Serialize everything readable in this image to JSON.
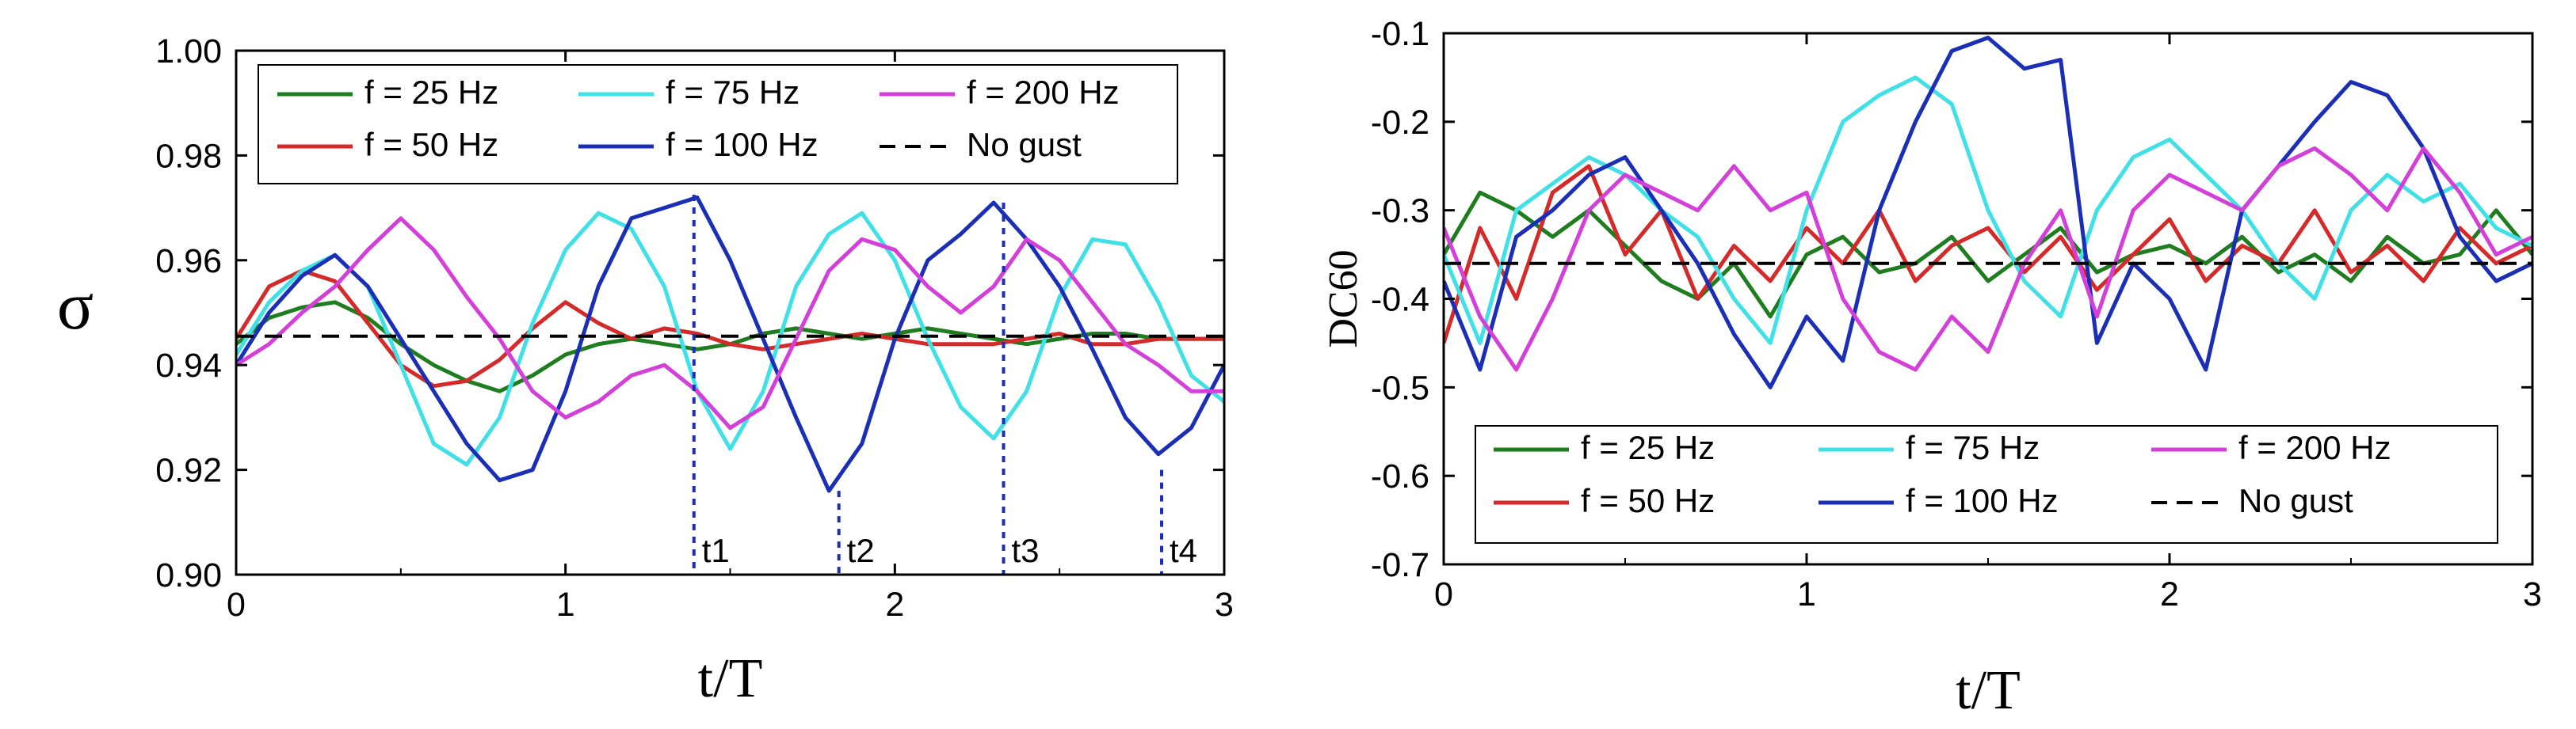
{
  "chart_data": [
    {
      "type": "line",
      "xlabel": "t/T",
      "ylabel": "σ",
      "xlim": [
        0,
        3
      ],
      "ylim": [
        0.9,
        1.0
      ],
      "xticks": [
        0,
        1,
        2,
        3
      ],
      "yticks": [
        0.9,
        0.92,
        0.94,
        0.96,
        0.98,
        1.0
      ],
      "xtick_labels": [
        "0",
        "1",
        "2",
        "3"
      ],
      "ytick_labels": [
        "0.90",
        "0.92",
        "0.94",
        "0.96",
        "0.98",
        "1.00"
      ],
      "legend_position": "top",
      "legend_layout": [
        [
          "f = 25 Hz",
          "f = 75 Hz",
          "f = 200 Hz"
        ],
        [
          "f = 50 Hz",
          "f = 100 Hz",
          "No gust"
        ]
      ],
      "markers": [
        {
          "label": "t1",
          "x": 1.39,
          "y": 0.9725
        },
        {
          "label": "t2",
          "x": 1.83,
          "y": 0.916
        },
        {
          "label": "t3",
          "x": 2.33,
          "y": 0.971
        },
        {
          "label": "t4",
          "x": 2.81,
          "y": 0.92
        }
      ],
      "series": [
        {
          "name": "f = 25 Hz",
          "color": "#1e7d1e",
          "dash": false,
          "x": [
            0,
            0.1,
            0.2,
            0.3,
            0.4,
            0.5,
            0.6,
            0.7,
            0.8,
            0.9,
            1.0,
            1.1,
            1.2,
            1.3,
            1.4,
            1.5,
            1.6,
            1.7,
            1.8,
            1.9,
            2.0,
            2.1,
            2.2,
            2.3,
            2.4,
            2.5,
            2.6,
            2.7,
            2.8,
            2.9,
            3.0
          ],
          "y": [
            0.944,
            0.949,
            0.951,
            0.952,
            0.949,
            0.944,
            0.94,
            0.937,
            0.935,
            0.938,
            0.942,
            0.944,
            0.945,
            0.944,
            0.943,
            0.944,
            0.946,
            0.947,
            0.946,
            0.945,
            0.946,
            0.947,
            0.946,
            0.945,
            0.944,
            0.945,
            0.946,
            0.946,
            0.945,
            0.945,
            0.945
          ]
        },
        {
          "name": "f = 50 Hz",
          "color": "#d42a2a",
          "dash": false,
          "x": [
            0,
            0.1,
            0.2,
            0.3,
            0.4,
            0.5,
            0.6,
            0.7,
            0.8,
            0.9,
            1.0,
            1.1,
            1.2,
            1.3,
            1.4,
            1.5,
            1.6,
            1.7,
            1.8,
            1.9,
            2.0,
            2.1,
            2.2,
            2.3,
            2.4,
            2.5,
            2.6,
            2.7,
            2.8,
            2.9,
            3.0
          ],
          "y": [
            0.945,
            0.955,
            0.958,
            0.956,
            0.948,
            0.94,
            0.936,
            0.937,
            0.941,
            0.947,
            0.952,
            0.948,
            0.945,
            0.947,
            0.946,
            0.944,
            0.943,
            0.944,
            0.945,
            0.946,
            0.945,
            0.944,
            0.944,
            0.944,
            0.945,
            0.946,
            0.944,
            0.944,
            0.945,
            0.945,
            0.945
          ]
        },
        {
          "name": "f = 75 Hz",
          "color": "#3fe0e6",
          "dash": false,
          "x": [
            0,
            0.1,
            0.2,
            0.3,
            0.4,
            0.5,
            0.6,
            0.7,
            0.8,
            0.9,
            1.0,
            1.1,
            1.2,
            1.3,
            1.4,
            1.5,
            1.6,
            1.7,
            1.8,
            1.9,
            2.0,
            2.1,
            2.2,
            2.3,
            2.4,
            2.5,
            2.6,
            2.7,
            2.8,
            2.9,
            3.0
          ],
          "y": [
            0.942,
            0.952,
            0.958,
            0.961,
            0.955,
            0.94,
            0.925,
            0.921,
            0.93,
            0.948,
            0.962,
            0.969,
            0.966,
            0.955,
            0.935,
            0.924,
            0.935,
            0.955,
            0.965,
            0.969,
            0.96,
            0.945,
            0.932,
            0.926,
            0.935,
            0.953,
            0.964,
            0.963,
            0.952,
            0.938,
            0.933
          ]
        },
        {
          "name": "f = 100 Hz",
          "color": "#1a2fb5",
          "dash": false,
          "x": [
            0,
            0.1,
            0.2,
            0.3,
            0.4,
            0.5,
            0.6,
            0.7,
            0.8,
            0.9,
            1.0,
            1.1,
            1.2,
            1.3,
            1.4,
            1.5,
            1.6,
            1.7,
            1.8,
            1.9,
            2.0,
            2.1,
            2.2,
            2.3,
            2.4,
            2.5,
            2.6,
            2.7,
            2.8,
            2.9,
            3.0
          ],
          "y": [
            0.94,
            0.95,
            0.957,
            0.961,
            0.955,
            0.945,
            0.935,
            0.925,
            0.918,
            0.92,
            0.935,
            0.955,
            0.968,
            0.97,
            0.972,
            0.96,
            0.945,
            0.93,
            0.916,
            0.925,
            0.945,
            0.96,
            0.965,
            0.971,
            0.964,
            0.955,
            0.943,
            0.93,
            0.923,
            0.928,
            0.94
          ]
        },
        {
          "name": "f = 200 Hz",
          "color": "#d43fd9",
          "dash": false,
          "x": [
            0,
            0.1,
            0.2,
            0.3,
            0.4,
            0.5,
            0.6,
            0.7,
            0.8,
            0.9,
            1.0,
            1.1,
            1.2,
            1.3,
            1.4,
            1.5,
            1.6,
            1.7,
            1.8,
            1.9,
            2.0,
            2.1,
            2.2,
            2.3,
            2.4,
            2.5,
            2.6,
            2.7,
            2.8,
            2.9,
            3.0
          ],
          "y": [
            0.94,
            0.944,
            0.95,
            0.955,
            0.962,
            0.968,
            0.962,
            0.953,
            0.945,
            0.935,
            0.93,
            0.933,
            0.938,
            0.94,
            0.935,
            0.928,
            0.932,
            0.945,
            0.958,
            0.964,
            0.962,
            0.955,
            0.95,
            0.955,
            0.964,
            0.96,
            0.952,
            0.944,
            0.94,
            0.935,
            0.935
          ]
        },
        {
          "name": "No gust",
          "color": "#000000",
          "dash": true,
          "x": [
            0,
            3
          ],
          "y": [
            0.9455,
            0.9455
          ]
        }
      ]
    },
    {
      "type": "line",
      "xlabel": "t/T",
      "ylabel": "DC60",
      "xlim": [
        0,
        3
      ],
      "ylim": [
        -0.7,
        -0.1
      ],
      "xticks": [
        0,
        1,
        2,
        3
      ],
      "yticks": [
        -0.7,
        -0.6,
        -0.5,
        -0.4,
        -0.3,
        -0.2,
        -0.1
      ],
      "xtick_labels": [
        "0",
        "1",
        "2",
        "3"
      ],
      "ytick_labels": [
        "-0.7",
        "-0.6",
        "-0.5",
        "-0.4",
        "-0.3",
        "-0.2",
        "-0.1"
      ],
      "legend_position": "bottom",
      "legend_layout": [
        [
          "f = 25 Hz",
          "f = 75 Hz",
          "f = 200 Hz"
        ],
        [
          "f = 50 Hz",
          "f = 100 Hz",
          "No gust"
        ]
      ],
      "series": [
        {
          "name": "f = 25 Hz",
          "color": "#1e7d1e",
          "dash": false,
          "x": [
            0,
            0.1,
            0.2,
            0.3,
            0.4,
            0.5,
            0.6,
            0.7,
            0.8,
            0.9,
            1.0,
            1.1,
            1.2,
            1.3,
            1.4,
            1.5,
            1.6,
            1.7,
            1.8,
            1.9,
            2.0,
            2.1,
            2.2,
            2.3,
            2.4,
            2.5,
            2.6,
            2.7,
            2.8,
            2.9,
            3.0
          ],
          "y": [
            -0.35,
            -0.28,
            -0.3,
            -0.33,
            -0.3,
            -0.34,
            -0.38,
            -0.4,
            -0.36,
            -0.42,
            -0.35,
            -0.33,
            -0.37,
            -0.36,
            -0.33,
            -0.38,
            -0.35,
            -0.32,
            -0.37,
            -0.35,
            -0.34,
            -0.36,
            -0.33,
            -0.37,
            -0.35,
            -0.38,
            -0.33,
            -0.36,
            -0.35,
            -0.3,
            -0.35
          ]
        },
        {
          "name": "f = 50 Hz",
          "color": "#d42a2a",
          "dash": false,
          "x": [
            0,
            0.1,
            0.2,
            0.3,
            0.4,
            0.5,
            0.6,
            0.7,
            0.8,
            0.9,
            1.0,
            1.1,
            1.2,
            1.3,
            1.4,
            1.5,
            1.6,
            1.7,
            1.8,
            1.9,
            2.0,
            2.1,
            2.2,
            2.3,
            2.4,
            2.5,
            2.6,
            2.7,
            2.8,
            2.9,
            3.0
          ],
          "y": [
            -0.45,
            -0.32,
            -0.4,
            -0.28,
            -0.25,
            -0.35,
            -0.3,
            -0.4,
            -0.34,
            -0.38,
            -0.32,
            -0.36,
            -0.3,
            -0.38,
            -0.34,
            -0.32,
            -0.37,
            -0.33,
            -0.39,
            -0.35,
            -0.31,
            -0.38,
            -0.34,
            -0.36,
            -0.3,
            -0.37,
            -0.34,
            -0.38,
            -0.32,
            -0.36,
            -0.34
          ]
        },
        {
          "name": "f = 75 Hz",
          "color": "#3fe0e6",
          "dash": false,
          "x": [
            0,
            0.1,
            0.2,
            0.3,
            0.4,
            0.5,
            0.6,
            0.7,
            0.8,
            0.9,
            1.0,
            1.1,
            1.2,
            1.3,
            1.4,
            1.5,
            1.6,
            1.7,
            1.8,
            1.9,
            2.0,
            2.1,
            2.2,
            2.3,
            2.4,
            2.5,
            2.6,
            2.7,
            2.8,
            2.9,
            3.0
          ],
          "y": [
            -0.35,
            -0.45,
            -0.3,
            -0.27,
            -0.24,
            -0.26,
            -0.3,
            -0.33,
            -0.4,
            -0.45,
            -0.3,
            -0.2,
            -0.17,
            -0.15,
            -0.18,
            -0.3,
            -0.38,
            -0.42,
            -0.3,
            -0.24,
            -0.22,
            -0.26,
            -0.3,
            -0.36,
            -0.4,
            -0.3,
            -0.26,
            -0.29,
            -0.27,
            -0.32,
            -0.34
          ]
        },
        {
          "name": "f = 100 Hz",
          "color": "#1a2fb5",
          "dash": false,
          "x": [
            0,
            0.1,
            0.2,
            0.3,
            0.4,
            0.5,
            0.6,
            0.7,
            0.8,
            0.9,
            1.0,
            1.1,
            1.2,
            1.3,
            1.4,
            1.5,
            1.6,
            1.7,
            1.8,
            1.9,
            2.0,
            2.1,
            2.2,
            2.3,
            2.4,
            2.5,
            2.6,
            2.7,
            2.8,
            2.9,
            3.0
          ],
          "y": [
            -0.38,
            -0.48,
            -0.33,
            -0.3,
            -0.26,
            -0.24,
            -0.3,
            -0.36,
            -0.44,
            -0.5,
            -0.42,
            -0.47,
            -0.3,
            -0.2,
            -0.12,
            -0.105,
            -0.14,
            -0.13,
            -0.45,
            -0.36,
            -0.4,
            -0.48,
            -0.3,
            -0.25,
            -0.2,
            -0.155,
            -0.17,
            -0.23,
            -0.33,
            -0.38,
            -0.36
          ]
        },
        {
          "name": "f = 200 Hz",
          "color": "#d43fd9",
          "dash": false,
          "x": [
            0,
            0.1,
            0.2,
            0.3,
            0.4,
            0.5,
            0.6,
            0.7,
            0.8,
            0.9,
            1.0,
            1.1,
            1.2,
            1.3,
            1.4,
            1.5,
            1.6,
            1.7,
            1.8,
            1.9,
            2.0,
            2.1,
            2.2,
            2.3,
            2.4,
            2.5,
            2.6,
            2.7,
            2.8,
            2.9,
            3.0
          ],
          "y": [
            -0.32,
            -0.42,
            -0.48,
            -0.4,
            -0.3,
            -0.26,
            -0.28,
            -0.3,
            -0.25,
            -0.3,
            -0.28,
            -0.4,
            -0.46,
            -0.48,
            -0.42,
            -0.46,
            -0.36,
            -0.3,
            -0.42,
            -0.3,
            -0.26,
            -0.28,
            -0.3,
            -0.25,
            -0.23,
            -0.26,
            -0.3,
            -0.23,
            -0.28,
            -0.35,
            -0.33
          ]
        },
        {
          "name": "No gust",
          "color": "#000000",
          "dash": true,
          "x": [
            0,
            3
          ],
          "y": [
            -0.36,
            -0.36
          ]
        }
      ]
    }
  ]
}
